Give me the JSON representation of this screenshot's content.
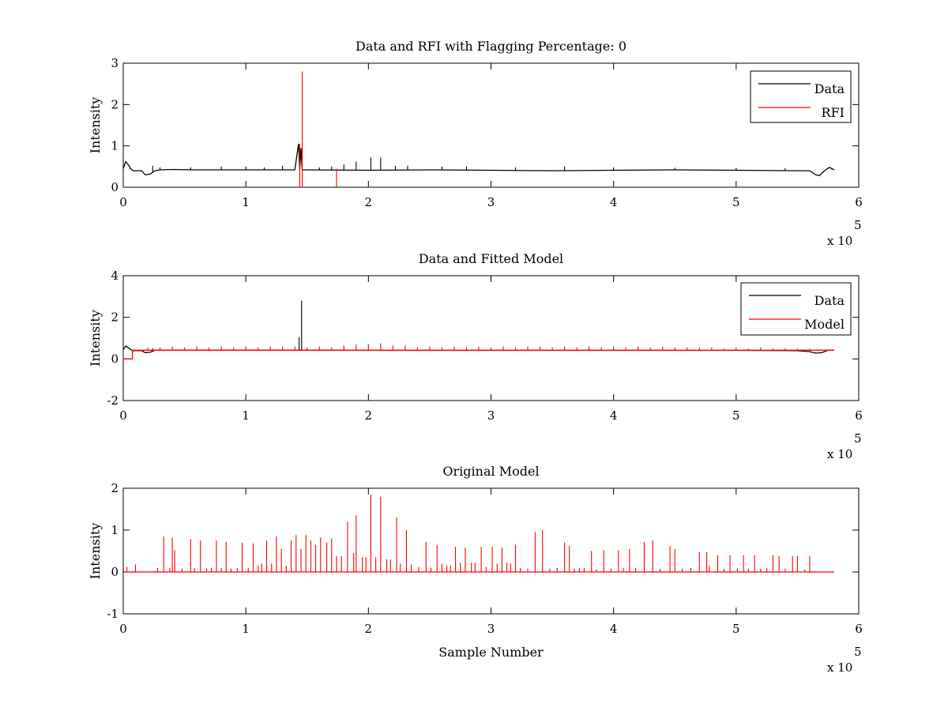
{
  "chart_data": [
    {
      "type": "line",
      "title": "Data and RFI with Flagging Percentage: 0",
      "xlabel": "",
      "ylabel": "Intensity",
      "xlim": [
        0,
        600000
      ],
      "ylim": [
        0,
        3
      ],
      "x_ticks": [
        "0",
        "1",
        "2",
        "3",
        "4",
        "5",
        "6"
      ],
      "y_ticks": [
        "0",
        "1",
        "2",
        "3"
      ],
      "x_multiplier": {
        "base": "x 10",
        "exp": "5"
      },
      "legend": {
        "position": "top-right",
        "entries": [
          {
            "label": "Data",
            "color": "#000000"
          },
          {
            "label": "RFI",
            "color": "#ff0000"
          }
        ]
      },
      "series": [
        {
          "name": "Data",
          "color": "#000000",
          "x": [
            0,
            2000,
            4000,
            6000,
            8000,
            10000,
            15000,
            18000,
            22000,
            26000,
            30000,
            40000,
            60000,
            100000,
            140000,
            143000,
            144000,
            145000,
            146000,
            147000,
            150000,
            200000,
            250000,
            300000,
            350000,
            400000,
            450000,
            500000,
            550000,
            560000,
            565000,
            568000,
            572000,
            576000,
            580000
          ],
          "y": [
            0.45,
            0.62,
            0.55,
            0.45,
            0.4,
            0.4,
            0.4,
            0.3,
            0.32,
            0.4,
            0.42,
            0.43,
            0.42,
            0.42,
            0.42,
            1.05,
            0.42,
            0.95,
            0.42,
            0.42,
            0.42,
            0.41,
            0.42,
            0.41,
            0.4,
            0.41,
            0.42,
            0.41,
            0.4,
            0.4,
            0.3,
            0.28,
            0.4,
            0.48,
            0.42
          ],
          "spikes": [
            [
              24000,
              0.52
            ],
            [
              30000,
              0.48
            ],
            [
              55000,
              0.48
            ],
            [
              80000,
              0.5
            ],
            [
              100000,
              0.5
            ],
            [
              115000,
              0.48
            ],
            [
              130000,
              0.52
            ],
            [
              160000,
              0.48
            ],
            [
              170000,
              0.5
            ],
            [
              180000,
              0.55
            ],
            [
              190000,
              0.62
            ],
            [
              202000,
              0.72
            ],
            [
              210000,
              0.72
            ],
            [
              222000,
              0.52
            ],
            [
              232000,
              0.52
            ],
            [
              260000,
              0.5
            ],
            [
              280000,
              0.5
            ],
            [
              320000,
              0.48
            ],
            [
              360000,
              0.5
            ],
            [
              400000,
              0.48
            ],
            [
              450000,
              0.47
            ],
            [
              500000,
              0.47
            ],
            [
              540000,
              0.46
            ]
          ]
        },
        {
          "name": "RFI",
          "color": "#ff0000",
          "spikes": [
            [
              144000,
              1.05
            ],
            [
              146000,
              2.8
            ],
            [
              174000,
              0.45
            ]
          ]
        }
      ]
    },
    {
      "type": "line",
      "title": "Data and Fitted Model",
      "xlabel": "",
      "ylabel": "Intensity",
      "xlim": [
        0,
        600000
      ],
      "ylim": [
        -2,
        4
      ],
      "x_ticks": [
        "0",
        "1",
        "2",
        "3",
        "4",
        "5",
        "6"
      ],
      "y_ticks": [
        "-2",
        "0",
        "2",
        "4"
      ],
      "x_multiplier": {
        "base": "x 10",
        "exp": "5"
      },
      "legend": {
        "position": "top-right",
        "entries": [
          {
            "label": "Data",
            "color": "#000000"
          },
          {
            "label": "Model",
            "color": "#ff0000"
          }
        ]
      },
      "series": [
        {
          "name": "Data",
          "color": "#000000",
          "x": [
            0,
            2000,
            4000,
            6000,
            8000,
            10000,
            15000,
            18000,
            22000,
            26000,
            30000,
            60000,
            100000,
            140000,
            200000,
            300000,
            400000,
            500000,
            550000,
            560000,
            565000,
            570000,
            575000,
            580000
          ],
          "y": [
            0.45,
            0.62,
            0.55,
            0.45,
            0.4,
            0.4,
            0.4,
            0.3,
            0.32,
            0.42,
            0.42,
            0.42,
            0.42,
            0.42,
            0.41,
            0.41,
            0.41,
            0.41,
            0.4,
            0.35,
            0.28,
            0.3,
            0.42,
            0.42
          ],
          "spikes": [
            [
              143500,
              1.05
            ],
            [
              145500,
              2.8
            ],
            [
              24000,
              0.52
            ]
          ]
        },
        {
          "name": "Model",
          "color": "#ff0000",
          "x": [
            0,
            7500,
            7500,
            580000
          ],
          "y": [
            0.0,
            0.0,
            0.42,
            0.42
          ],
          "spikes": [
            [
              20000,
              0.55
            ],
            [
              30000,
              0.55
            ],
            [
              40000,
              0.6
            ],
            [
              50000,
              0.55
            ],
            [
              60000,
              0.6
            ],
            [
              70000,
              0.55
            ],
            [
              80000,
              0.6
            ],
            [
              90000,
              0.55
            ],
            [
              100000,
              0.6
            ],
            [
              110000,
              0.55
            ],
            [
              120000,
              0.6
            ],
            [
              130000,
              0.6
            ],
            [
              140000,
              0.6
            ],
            [
              150000,
              0.55
            ],
            [
              160000,
              0.6
            ],
            [
              170000,
              0.55
            ],
            [
              180000,
              0.65
            ],
            [
              190000,
              0.7
            ],
            [
              200000,
              0.72
            ],
            [
              210000,
              0.75
            ],
            [
              220000,
              0.65
            ],
            [
              230000,
              0.65
            ],
            [
              240000,
              0.55
            ],
            [
              250000,
              0.6
            ],
            [
              260000,
              0.55
            ],
            [
              270000,
              0.6
            ],
            [
              280000,
              0.55
            ],
            [
              290000,
              0.6
            ],
            [
              300000,
              0.55
            ],
            [
              310000,
              0.6
            ],
            [
              320000,
              0.55
            ],
            [
              330000,
              0.6
            ],
            [
              340000,
              0.6
            ],
            [
              350000,
              0.55
            ],
            [
              360000,
              0.6
            ],
            [
              370000,
              0.55
            ],
            [
              380000,
              0.6
            ],
            [
              390000,
              0.55
            ],
            [
              400000,
              0.6
            ],
            [
              410000,
              0.55
            ],
            [
              420000,
              0.6
            ],
            [
              430000,
              0.55
            ],
            [
              440000,
              0.6
            ],
            [
              450000,
              0.55
            ],
            [
              460000,
              0.55
            ],
            [
              470000,
              0.55
            ],
            [
              480000,
              0.55
            ],
            [
              490000,
              0.5
            ],
            [
              500000,
              0.55
            ],
            [
              510000,
              0.5
            ],
            [
              520000,
              0.55
            ],
            [
              530000,
              0.5
            ],
            [
              540000,
              0.5
            ],
            [
              550000,
              0.5
            ],
            [
              560000,
              0.5
            ]
          ]
        }
      ]
    },
    {
      "type": "line",
      "title": "Original Model",
      "xlabel": "Sample Number",
      "ylabel": "Intensity",
      "xlim": [
        0,
        600000
      ],
      "ylim": [
        -1,
        2
      ],
      "x_ticks": [
        "0",
        "1",
        "2",
        "3",
        "4",
        "5",
        "6"
      ],
      "y_ticks": [
        "-1",
        "0",
        "1",
        "2"
      ],
      "x_multiplier": {
        "base": "x 10",
        "exp": "5"
      },
      "series": [
        {
          "color": "#ff0000",
          "x": [
            2000,
            580000
          ],
          "y": [
            0,
            0
          ],
          "spikes": [
            [
              3000,
              0.12
            ],
            [
              10000,
              0.18
            ],
            [
              28000,
              0.1
            ],
            [
              33000,
              0.85
            ],
            [
              38000,
              0.1
            ],
            [
              40000,
              0.82
            ],
            [
              42000,
              0.52
            ],
            [
              48000,
              0.08
            ],
            [
              55000,
              0.78
            ],
            [
              58000,
              0.1
            ],
            [
              63000,
              0.75
            ],
            [
              68000,
              0.08
            ],
            [
              72000,
              0.1
            ],
            [
              76000,
              0.75
            ],
            [
              80000,
              0.1
            ],
            [
              84000,
              0.72
            ],
            [
              88000,
              0.08
            ],
            [
              93000,
              0.1
            ],
            [
              97000,
              0.7
            ],
            [
              102000,
              0.1
            ],
            [
              106000,
              0.68
            ],
            [
              110000,
              0.15
            ],
            [
              113000,
              0.2
            ],
            [
              117000,
              0.75
            ],
            [
              121000,
              0.2
            ],
            [
              125000,
              0.85
            ],
            [
              129000,
              0.55
            ],
            [
              133000,
              0.15
            ],
            [
              137000,
              0.75
            ],
            [
              141000,
              0.88
            ],
            [
              145000,
              0.55
            ],
            [
              149000,
              0.88
            ],
            [
              153000,
              0.75
            ],
            [
              157000,
              0.65
            ],
            [
              161000,
              0.82
            ],
            [
              166000,
              0.7
            ],
            [
              170000,
              0.8
            ],
            [
              174000,
              0.38
            ],
            [
              178000,
              0.38
            ],
            [
              183000,
              1.2
            ],
            [
              188000,
              0.45
            ],
            [
              190000,
              1.35
            ],
            [
              195000,
              0.35
            ],
            [
              198000,
              0.35
            ],
            [
              202000,
              1.85
            ],
            [
              206000,
              0.35
            ],
            [
              210000,
              1.8
            ],
            [
              215000,
              0.3
            ],
            [
              218000,
              0.3
            ],
            [
              223000,
              1.3
            ],
            [
              226000,
              0.2
            ],
            [
              231000,
              1.0
            ],
            [
              235000,
              0.18
            ],
            [
              241000,
              0.12
            ],
            [
              247000,
              0.72
            ],
            [
              251000,
              0.1
            ],
            [
              256000,
              0.65
            ],
            [
              260000,
              0.2
            ],
            [
              264000,
              0.15
            ],
            [
              267000,
              0.15
            ],
            [
              271000,
              0.6
            ],
            [
              275000,
              0.22
            ],
            [
              279000,
              0.58
            ],
            [
              284000,
              0.22
            ],
            [
              287000,
              0.22
            ],
            [
              292000,
              0.6
            ],
            [
              296000,
              0.12
            ],
            [
              301000,
              0.6
            ],
            [
              305000,
              0.2
            ],
            [
              309000,
              0.58
            ],
            [
              313000,
              0.22
            ],
            [
              316000,
              0.2
            ],
            [
              320000,
              0.65
            ],
            [
              324000,
              0.1
            ],
            [
              330000,
              0.08
            ],
            [
              336000,
              0.95
            ],
            [
              342000,
              1.0
            ],
            [
              348000,
              0.08
            ],
            [
              354000,
              0.1
            ],
            [
              360000,
              0.7
            ],
            [
              364000,
              0.62
            ],
            [
              368000,
              0.08
            ],
            [
              372000,
              0.1
            ],
            [
              376000,
              0.1
            ],
            [
              382000,
              0.5
            ],
            [
              386000,
              0.06
            ],
            [
              392000,
              0.52
            ],
            [
              398000,
              0.08
            ],
            [
              404000,
              0.52
            ],
            [
              408000,
              0.1
            ],
            [
              413000,
              0.55
            ],
            [
              418000,
              0.1
            ],
            [
              425000,
              0.72
            ],
            [
              432000,
              0.75
            ],
            [
              438000,
              0.08
            ],
            [
              446000,
              0.62
            ],
            [
              450000,
              0.55
            ],
            [
              456000,
              0.08
            ],
            [
              463000,
              0.1
            ],
            [
              470000,
              0.48
            ],
            [
              476000,
              0.48
            ],
            [
              478000,
              0.15
            ],
            [
              485000,
              0.4
            ],
            [
              490000,
              0.08
            ],
            [
              495000,
              0.4
            ],
            [
              501000,
              0.08
            ],
            [
              506000,
              0.4
            ],
            [
              510000,
              0.08
            ],
            [
              515000,
              0.4
            ],
            [
              520000,
              0.08
            ],
            [
              525000,
              0.1
            ],
            [
              530000,
              0.4
            ],
            [
              535000,
              0.38
            ],
            [
              540000,
              0.08
            ],
            [
              546000,
              0.38
            ],
            [
              550000,
              0.38
            ],
            [
              556000,
              0.06
            ],
            [
              560000,
              0.38
            ]
          ]
        }
      ]
    }
  ]
}
